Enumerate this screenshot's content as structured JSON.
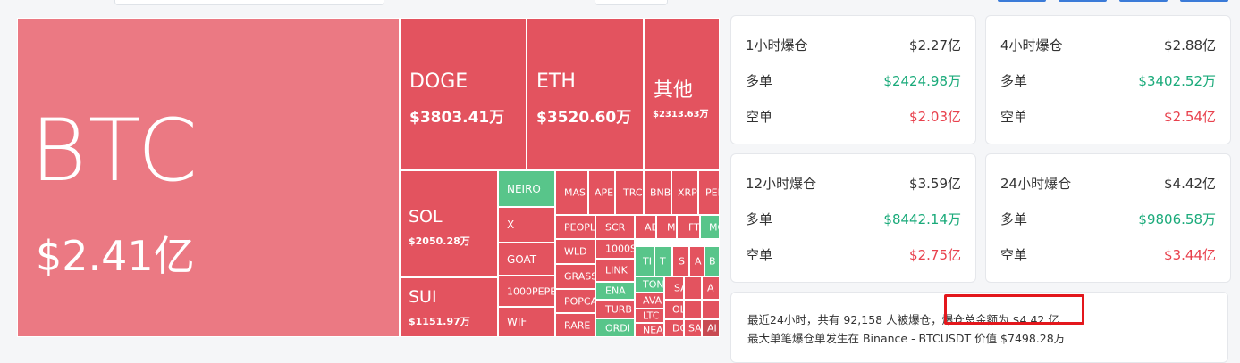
{
  "treemap": {
    "btc": {
      "symbol": "BTC",
      "value": "$2.41亿"
    },
    "doge": {
      "symbol": "DOGE",
      "value": "$3803.41万"
    },
    "eth": {
      "symbol": "ETH",
      "value": "$3520.60万"
    },
    "other": {
      "symbol": "其他",
      "value": "$2313.63万"
    },
    "sol": {
      "symbol": "SOL",
      "value": "$2050.28万"
    },
    "sui": {
      "symbol": "SUI",
      "value": "$1151.97万"
    },
    "small": {
      "neiro": "NEIRO",
      "x": "X",
      "goat": "GOAT",
      "pepe1000": "1000PEPE",
      "wif": "WIF",
      "mas": "MAS",
      "ape": "APE",
      "trc": "TRC",
      "bnb": "BNB",
      "xrp": "XRP",
      "pep": "PEP",
      "people": "PEOPL",
      "scr": "SCR",
      "ad": "AD",
      "me": "ME",
      "ftt": "FT",
      "mo": "MO",
      "wld": "WLD",
      "s1000": "1000S",
      "grass": "GRASS",
      "link": "LINK",
      "ena": "ENA",
      "popcat": "POPCA",
      "turbo": "TURB",
      "rare": "RARE",
      "ordi": "ORDI",
      "ti": "TI",
      "ton": "TON",
      "ava": "AVA",
      "ltc": "LTC",
      "near": "NEA",
      "sa": "SA",
      "dc": "DC",
      "ol": "OL",
      "sand": "SA",
      "al": "AI",
      "s1": "S",
      "b1": "B",
      "t1": "T",
      "a1": "A"
    }
  },
  "stats": [
    {
      "title": "1小时爆仓",
      "total": "$2.27亿",
      "long_label": "多单",
      "long": "$2424.98万",
      "short_label": "空单",
      "short": "$2.03亿"
    },
    {
      "title": "4小时爆仓",
      "total": "$2.88亿",
      "long_label": "多单",
      "long": "$3402.52万",
      "short_label": "空单",
      "short": "$2.54亿"
    },
    {
      "title": "12小时爆仓",
      "total": "$3.59亿",
      "long_label": "多单",
      "long": "$8442.14万",
      "short_label": "空单",
      "short": "$2.75亿"
    },
    {
      "title": "24小时爆仓",
      "total": "$4.42亿",
      "long_label": "多单",
      "long": "$9806.58万",
      "short_label": "空单",
      "short": "$3.44亿"
    }
  ],
  "summary": {
    "line1": "最近24小时，共有 92,158 人被爆仓，爆仓总金额为 $4.42 亿",
    "line2": "最大单笔爆仓单发生在 Binance - BTCUSDT 价值 $7498.28万"
  },
  "colors": {
    "long_loss": "#e3535f",
    "short_gain": "#58c58a",
    "up": "#1aaa7a",
    "down": "#e8414d",
    "highlight": "#e3171c"
  }
}
